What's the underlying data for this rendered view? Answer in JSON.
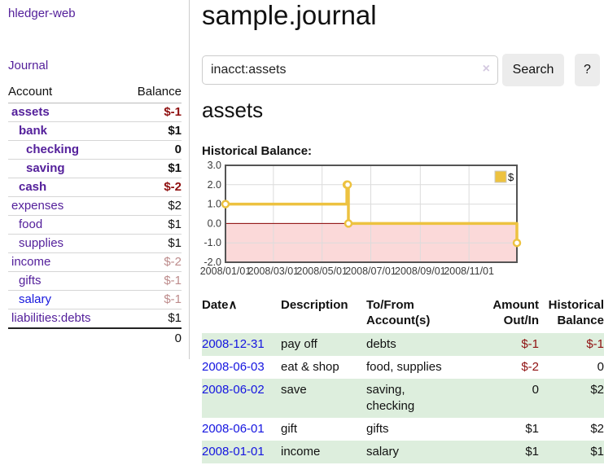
{
  "app": {
    "title": "hledger-web",
    "nav_journal": "Journal"
  },
  "colors": {
    "link_purple": "#54209b",
    "link_blue": "#1717dd",
    "negative": "#8f1010",
    "negative_muted": "#bd8b8b",
    "row_green": "#ddeedd",
    "series_yellow": "#edc240",
    "negative_region_pink": "#fbd9d9",
    "zero_line_red": "#8b0000"
  },
  "sidebar": {
    "columns": [
      "Account",
      "Balance"
    ],
    "accounts": [
      {
        "name": "assets",
        "level": 0,
        "bold": true,
        "color": "purple",
        "balance": "$-1",
        "balance_class": "val-neg"
      },
      {
        "name": "bank",
        "level": 1,
        "bold": true,
        "color": "purple",
        "balance": "$1",
        "balance_class": ""
      },
      {
        "name": "checking",
        "level": 2,
        "bold": true,
        "color": "purple",
        "balance": "0",
        "balance_class": ""
      },
      {
        "name": "saving",
        "level": 2,
        "bold": true,
        "color": "purple",
        "balance": "$1",
        "balance_class": ""
      },
      {
        "name": "cash",
        "level": 1,
        "bold": true,
        "color": "purple",
        "balance": "$-2",
        "balance_class": "val-neg"
      },
      {
        "name": "expenses",
        "level": 0,
        "bold": false,
        "color": "purple",
        "balance": "$2",
        "balance_class": ""
      },
      {
        "name": "food",
        "level": 1,
        "bold": false,
        "color": "purple",
        "balance": "$1",
        "balance_class": ""
      },
      {
        "name": "supplies",
        "level": 1,
        "bold": false,
        "color": "purple",
        "balance": "$1",
        "balance_class": ""
      },
      {
        "name": "income",
        "level": 0,
        "bold": false,
        "color": "purple",
        "balance": "$-2",
        "balance_class": "val-negsoft"
      },
      {
        "name": "gifts",
        "level": 1,
        "bold": false,
        "color": "purple",
        "balance": "$-1",
        "balance_class": "val-negsoft"
      },
      {
        "name": "salary",
        "level": 1,
        "bold": false,
        "color": "blue",
        "balance": "$-1",
        "balance_class": "val-negsoft"
      },
      {
        "name": "liabilities:debts",
        "level": 0,
        "bold": false,
        "color": "purple",
        "balance": "$1",
        "balance_class": ""
      }
    ],
    "total": "0"
  },
  "header": {
    "title": "sample.journal"
  },
  "search": {
    "value": "inacct:assets",
    "clear_icon": "×",
    "button_label": "Search",
    "help_label": "?"
  },
  "account_page": {
    "title": "assets",
    "chart_label": "Historical Balance:"
  },
  "chart_data": {
    "type": "line",
    "title": "Historical Balance",
    "step": true,
    "series": [
      {
        "name": "$",
        "color": "#edc240",
        "points": [
          [
            "2008-01-01",
            1
          ],
          [
            "2008-06-01",
            2
          ],
          [
            "2008-06-02",
            2
          ],
          [
            "2008-06-03",
            0
          ],
          [
            "2008-12-31",
            -1
          ]
        ]
      }
    ],
    "x_ticks": [
      "2008/01/01",
      "2008/03/01",
      "2008/05/01",
      "2008/07/01",
      "2008/09/01",
      "2008/11/01"
    ],
    "y_ticks": [
      3.0,
      2.0,
      1.0,
      0.0,
      -1.0,
      -2.0
    ],
    "xlim": [
      "2008-01-01",
      "2008-12-31"
    ],
    "ylim": [
      -2,
      3
    ],
    "grid": true,
    "negative_fill": "#fbd9d9",
    "zero_line_color": "#8b0000",
    "legend": {
      "label": "$",
      "position": "top-right"
    }
  },
  "register": {
    "sort_arrow": "∧",
    "columns": [
      "Date",
      "Description",
      "To/From Account(s)",
      "Amount Out/In",
      "Historical Balance"
    ],
    "rows": [
      {
        "date": "2008-12-31",
        "description": "pay off",
        "accounts": "debts",
        "amount": "$-1",
        "amount_negative": true,
        "balance": "$-1",
        "balance_negative": true
      },
      {
        "date": "2008-06-03",
        "description": "eat & shop",
        "accounts": "food, supplies",
        "amount": "$-2",
        "amount_negative": true,
        "balance": "0",
        "balance_negative": false
      },
      {
        "date": "2008-06-02",
        "description": "save",
        "accounts": "saving, checking",
        "amount": "0",
        "amount_negative": false,
        "balance": "$2",
        "balance_negative": false
      },
      {
        "date": "2008-06-01",
        "description": "gift",
        "accounts": "gifts",
        "amount": "$1",
        "amount_negative": false,
        "balance": "$2",
        "balance_negative": false
      },
      {
        "date": "2008-01-01",
        "description": "income",
        "accounts": "salary",
        "amount": "$1",
        "amount_negative": false,
        "balance": "$1",
        "balance_negative": false
      }
    ]
  }
}
